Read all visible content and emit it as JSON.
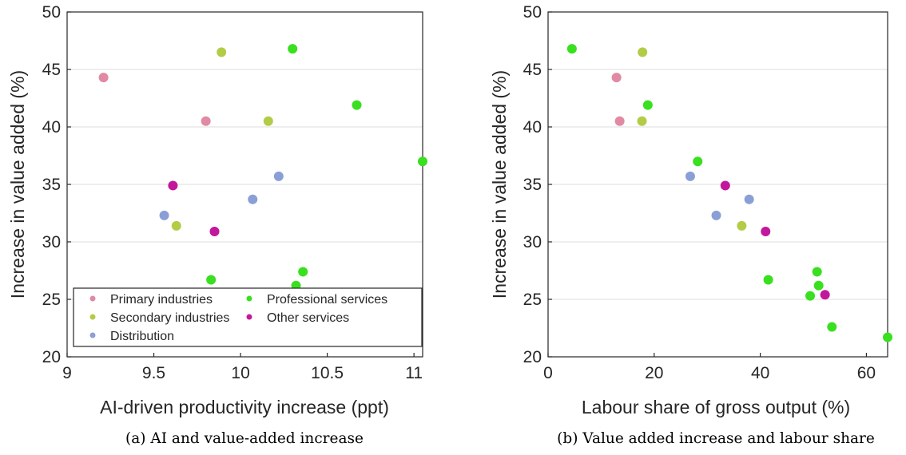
{
  "categories": [
    {
      "name": "Primary industries",
      "color": "#e08aa3"
    },
    {
      "name": "Secondary industries",
      "color": "#b2cc47"
    },
    {
      "name": "Distribution",
      "color": "#8a9fd6"
    },
    {
      "name": "Professional services",
      "color": "#39e01f"
    },
    {
      "name": "Other services",
      "color": "#c2189c"
    }
  ],
  "chart_data": [
    {
      "type": "scatter",
      "caption": "(a) AI and value-added increase",
      "xlabel": "AI-driven productivity increase (ppt)",
      "ylabel": "Increase in value added (%)",
      "xlim": [
        9,
        11.05
      ],
      "ylim": [
        20,
        50
      ],
      "xticks": [
        9,
        9.5,
        10,
        10.5,
        11
      ],
      "xtick_labels": [
        "9",
        "9.5",
        "10",
        "10.5",
        "11"
      ],
      "yticks": [
        20,
        25,
        30,
        35,
        40,
        45,
        50
      ],
      "ytick_labels": [
        "20",
        "25",
        "30",
        "35",
        "40",
        "45",
        "50"
      ],
      "grid": "y",
      "legend": "bottom-left",
      "series": [
        {
          "name": "Primary industries",
          "x": [
            9.21,
            9.8
          ],
          "y": [
            44.3,
            40.5
          ]
        },
        {
          "name": "Secondary industries",
          "x": [
            9.89,
            10.16,
            9.63
          ],
          "y": [
            46.5,
            40.5,
            31.4
          ]
        },
        {
          "name": "Distribution",
          "x": [
            10.22,
            10.07,
            9.56
          ],
          "y": [
            35.7,
            33.7,
            32.3
          ]
        },
        {
          "name": "Professional services",
          "x": [
            10.3,
            10.67,
            11.05,
            10.36,
            9.83,
            10.32
          ],
          "y": [
            46.8,
            41.9,
            37.0,
            27.4,
            26.7,
            26.2
          ]
        },
        {
          "name": "Other services",
          "x": [
            9.61,
            9.85
          ],
          "y": [
            34.9,
            30.9
          ]
        }
      ]
    },
    {
      "type": "scatter",
      "caption": "(b) Value added increase and labour share",
      "xlabel": "Labour share of gross output (%)",
      "ylabel": "Increase in value added (%)",
      "xlim": [
        0,
        64
      ],
      "ylim": [
        20,
        50
      ],
      "xticks": [
        0,
        20,
        40,
        60
      ],
      "xtick_labels": [
        "0",
        "20",
        "40",
        "60"
      ],
      "yticks": [
        20,
        25,
        30,
        35,
        40,
        45,
        50
      ],
      "ytick_labels": [
        "20",
        "25",
        "30",
        "35",
        "40",
        "45",
        "50"
      ],
      "grid": "y",
      "series": [
        {
          "name": "Primary industries",
          "x": [
            12.9,
            13.5
          ],
          "y": [
            44.3,
            40.5
          ]
        },
        {
          "name": "Secondary industries",
          "x": [
            17.8,
            17.7,
            36.5
          ],
          "y": [
            46.5,
            40.5,
            31.4
          ]
        },
        {
          "name": "Distribution",
          "x": [
            26.8,
            37.9,
            31.7
          ],
          "y": [
            35.7,
            33.7,
            32.3
          ]
        },
        {
          "name": "Professional services",
          "x": [
            4.5,
            18.8,
            28.2,
            50.7,
            41.5,
            51.0,
            49.4,
            53.5,
            64.0
          ],
          "y": [
            46.8,
            41.9,
            37.0,
            27.4,
            26.7,
            26.2,
            25.3,
            22.6,
            21.7
          ]
        },
        {
          "name": "Other services",
          "x": [
            33.4,
            41.0,
            52.2
          ],
          "y": [
            34.9,
            30.9,
            25.4
          ]
        }
      ]
    }
  ]
}
